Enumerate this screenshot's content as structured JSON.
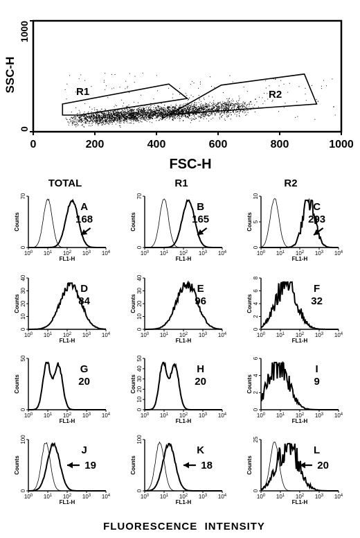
{
  "scatter": {
    "xlabel": "FSC-H",
    "ylabel": "SSC-H",
    "xticks": [
      "0",
      "200",
      "400",
      "600",
      "800",
      "1000"
    ],
    "yticks": [
      "0",
      "1000"
    ],
    "xlim": [
      0,
      1000
    ],
    "ylim": [
      0,
      1000
    ],
    "gates": [
      {
        "label": "R1",
        "polygon": [
          [
            95,
            250
          ],
          [
            440,
            430
          ],
          [
            500,
            300
          ],
          [
            150,
            150
          ],
          [
            95,
            150
          ]
        ]
      },
      {
        "label": "R2",
        "polygon": [
          [
            420,
            120
          ],
          [
            610,
            420
          ],
          [
            880,
            520
          ],
          [
            920,
            250
          ],
          [
            420,
            150
          ]
        ]
      }
    ]
  },
  "column_headers": [
    "TOTAL",
    "R1",
    "R2"
  ],
  "footer_label": "FLUORESCENCE  INTENSITY",
  "histogram_axis": {
    "ylabel": "Counts",
    "xlabel": "FL1-H",
    "xtick_base": "10",
    "xtick_exponents": [
      "0",
      "1",
      "2",
      "3",
      "4"
    ]
  },
  "colors": {
    "ink": "#000000",
    "background": "#ffffff"
  },
  "chart_data": [
    {
      "type": "scatter",
      "title": "",
      "xlabel": "FSC-H",
      "ylabel": "SSC-H",
      "xlim": [
        0,
        1000
      ],
      "ylim": [
        0,
        1000
      ],
      "xticks": [
        0,
        200,
        400,
        600,
        800,
        1000
      ],
      "yticks": [
        0,
        1000
      ],
      "gates": [
        "R1",
        "R2"
      ]
    },
    {
      "type": "area",
      "title": "A",
      "column": "TOTAL",
      "value_label": "168",
      "arrow": true,
      "xscale": "log",
      "xlim": [
        1,
        10000
      ],
      "ylim": [
        0,
        70
      ],
      "yticks": [
        0,
        70
      ],
      "thick_peak": 180,
      "thin_peak": 10
    },
    {
      "type": "area",
      "title": "B",
      "column": "R1",
      "value_label": "165",
      "arrow": true,
      "xscale": "log",
      "xlim": [
        1,
        10000
      ],
      "ylim": [
        0,
        70
      ],
      "yticks": [
        0,
        70
      ],
      "thick_peak": 180,
      "thin_peak": 10
    },
    {
      "type": "area",
      "title": "C",
      "column": "R2",
      "value_label": "293",
      "arrow": true,
      "xscale": "log",
      "xlim": [
        1,
        10000
      ],
      "ylim": [
        0,
        10
      ],
      "yticks": [
        0,
        5,
        10
      ],
      "thick_peak": 300,
      "thin_peak": 5
    },
    {
      "type": "area",
      "title": "D",
      "column": "TOTAL",
      "value_label": "84",
      "arrow": false,
      "xscale": "log",
      "xlim": [
        1,
        10000
      ],
      "ylim": [
        0,
        40
      ],
      "yticks": [
        0,
        10,
        20,
        30,
        40
      ],
      "thick_peak": 150
    },
    {
      "type": "area",
      "title": "E",
      "column": "R1",
      "value_label": "96",
      "arrow": false,
      "xscale": "log",
      "xlim": [
        1,
        10000
      ],
      "ylim": [
        0,
        40
      ],
      "yticks": [
        0,
        10,
        20,
        30,
        40
      ],
      "thick_peak": 150
    },
    {
      "type": "area",
      "title": "F",
      "column": "R2",
      "value_label": "32",
      "arrow": false,
      "xscale": "log",
      "xlim": [
        1,
        10000
      ],
      "ylim": [
        0,
        8
      ],
      "yticks": [
        0,
        2,
        4,
        6,
        8
      ],
      "thick_peak": 20
    },
    {
      "type": "area",
      "title": "G",
      "column": "TOTAL",
      "value_label": "20",
      "arrow": false,
      "xscale": "log",
      "xlim": [
        1,
        10000
      ],
      "ylim": [
        0,
        50
      ],
      "yticks": [
        0,
        50
      ],
      "thick_peak": 10
    },
    {
      "type": "area",
      "title": "H",
      "column": "R1",
      "value_label": "20",
      "arrow": false,
      "xscale": "log",
      "xlim": [
        1,
        10000
      ],
      "ylim": [
        0,
        50
      ],
      "yticks": [
        0,
        10,
        20,
        30,
        40,
        50
      ],
      "thick_peak": 10
    },
    {
      "type": "area",
      "title": "I",
      "column": "R2",
      "value_label": "9",
      "arrow": false,
      "xscale": "log",
      "xlim": [
        1,
        10000
      ],
      "ylim": [
        0,
        6
      ],
      "yticks": [
        0,
        2,
        4,
        6
      ],
      "thick_peak": 8
    },
    {
      "type": "area",
      "title": "J",
      "column": "TOTAL",
      "value_label": "19",
      "arrow": true,
      "xscale": "log",
      "xlim": [
        1,
        10000
      ],
      "ylim": [
        0,
        100
      ],
      "yticks": [
        0,
        100
      ],
      "thick_peak": 20,
      "thin_peak": 8
    },
    {
      "type": "area",
      "title": "K",
      "column": "R1",
      "value_label": "18",
      "arrow": true,
      "xscale": "log",
      "xlim": [
        1,
        10000
      ],
      "ylim": [
        0,
        100
      ],
      "yticks": [
        0,
        100
      ],
      "thick_peak": 18,
      "thin_peak": 6
    },
    {
      "type": "area",
      "title": "L",
      "column": "R2",
      "value_label": "20",
      "arrow": true,
      "xscale": "log",
      "xlim": [
        1,
        10000
      ],
      "ylim": [
        0,
        25
      ],
      "yticks": [
        0,
        25
      ],
      "thick_peak": 25,
      "thin_peak": 5
    }
  ]
}
